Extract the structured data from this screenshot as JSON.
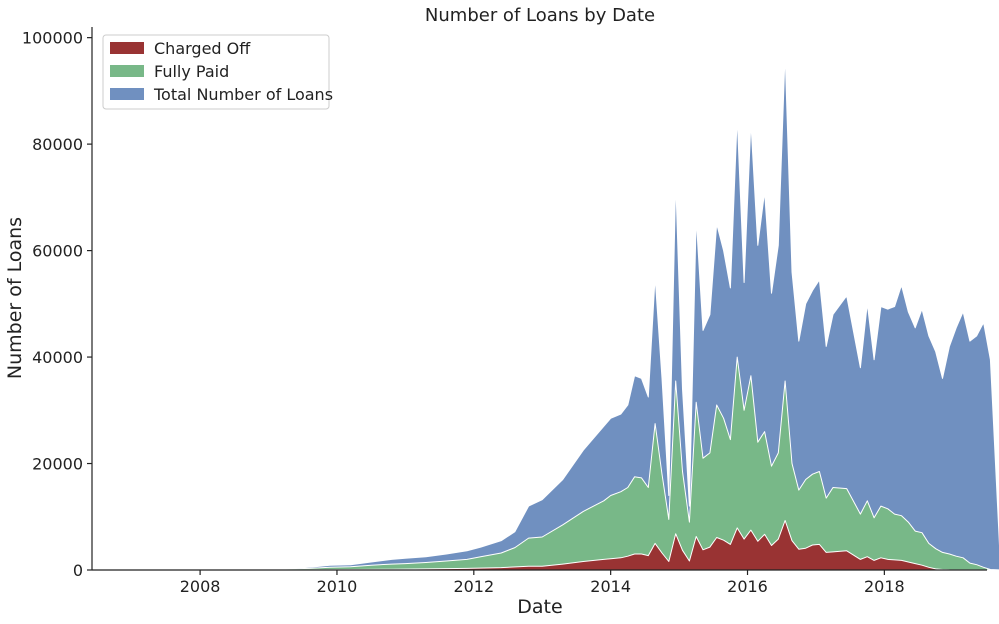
{
  "chart_data": {
    "type": "area",
    "title": "Number of Loans by Date",
    "xlabel": "Date",
    "ylabel": "Number of Loans",
    "xlim": [
      2006.42,
      2019.5
    ],
    "ylim": [
      0,
      102000
    ],
    "xticks": [
      2008,
      2010,
      2012,
      2014,
      2016,
      2018
    ],
    "xtick_labels": [
      "2008",
      "2010",
      "2012",
      "2014",
      "2016",
      "2018"
    ],
    "yticks": [
      0,
      20000,
      40000,
      60000,
      80000,
      100000
    ],
    "ytick_labels": [
      "0",
      "20000",
      "40000",
      "60000",
      "80000",
      "100000"
    ],
    "grid": false,
    "legend_position": "top-left",
    "stacked": false,
    "draw_order": [
      "total",
      "fully_paid",
      "charged_off"
    ],
    "legend_order": [
      "charged_off",
      "fully_paid",
      "total"
    ],
    "series": {
      "total": {
        "name": "Total Number of Loans",
        "color": "#7090c0",
        "points": [
          [
            2006.9,
            0
          ],
          [
            2007.5,
            20
          ],
          [
            2008.0,
            40
          ],
          [
            2008.2,
            300
          ],
          [
            2008.4,
            60
          ],
          [
            2008.8,
            80
          ],
          [
            2009.0,
            150
          ],
          [
            2009.3,
            300
          ],
          [
            2009.6,
            500
          ],
          [
            2009.9,
            900
          ],
          [
            2010.2,
            1000
          ],
          [
            2010.5,
            1500
          ],
          [
            2010.8,
            2000
          ],
          [
            2011.0,
            2200
          ],
          [
            2011.3,
            2500
          ],
          [
            2011.6,
            3000
          ],
          [
            2011.9,
            3600
          ],
          [
            2012.1,
            4300
          ],
          [
            2012.4,
            5500
          ],
          [
            2012.6,
            7200
          ],
          [
            2012.8,
            12000
          ],
          [
            2013.0,
            13200
          ],
          [
            2013.3,
            17000
          ],
          [
            2013.6,
            22500
          ],
          [
            2013.9,
            27000
          ],
          [
            2014.0,
            28500
          ],
          [
            2014.15,
            29300
          ],
          [
            2014.25,
            31000
          ],
          [
            2014.35,
            36500
          ],
          [
            2014.45,
            36000
          ],
          [
            2014.55,
            32500
          ],
          [
            2014.65,
            55000
          ],
          [
            2014.75,
            36000
          ],
          [
            2014.85,
            14000
          ],
          [
            2014.95,
            73000
          ],
          [
            2015.05,
            34000
          ],
          [
            2015.15,
            12000
          ],
          [
            2015.25,
            66000
          ],
          [
            2015.35,
            45000
          ],
          [
            2015.45,
            48000
          ],
          [
            2015.55,
            65000
          ],
          [
            2015.65,
            60000
          ],
          [
            2015.75,
            53000
          ],
          [
            2015.85,
            85000
          ],
          [
            2015.95,
            54000
          ],
          [
            2016.05,
            84000
          ],
          [
            2016.15,
            61000
          ],
          [
            2016.25,
            71000
          ],
          [
            2016.35,
            52000
          ],
          [
            2016.45,
            61000
          ],
          [
            2016.55,
            97000
          ],
          [
            2016.65,
            56000
          ],
          [
            2016.75,
            43000
          ],
          [
            2016.85,
            50000
          ],
          [
            2016.95,
            52500
          ],
          [
            2017.05,
            54500
          ],
          [
            2017.15,
            42000
          ],
          [
            2017.25,
            48000
          ],
          [
            2017.45,
            51500
          ],
          [
            2017.65,
            38000
          ],
          [
            2017.75,
            50000
          ],
          [
            2017.85,
            39500
          ],
          [
            2017.95,
            49500
          ],
          [
            2018.05,
            49000
          ],
          [
            2018.15,
            49500
          ],
          [
            2018.25,
            53500
          ],
          [
            2018.35,
            48500
          ],
          [
            2018.45,
            45500
          ],
          [
            2018.55,
            49000
          ],
          [
            2018.65,
            44000
          ],
          [
            2018.75,
            41000
          ],
          [
            2018.85,
            36000
          ],
          [
            2018.95,
            42000
          ],
          [
            2019.05,
            45500
          ],
          [
            2019.15,
            48500
          ],
          [
            2019.25,
            43000
          ],
          [
            2019.35,
            44000
          ],
          [
            2019.45,
            46500
          ],
          [
            2019.55,
            39500
          ],
          [
            2019.7,
            0
          ]
        ]
      },
      "fully_paid": {
        "name": "Fully Paid",
        "color": "#78b888",
        "points": [
          [
            2006.9,
            0
          ],
          [
            2007.5,
            20
          ],
          [
            2008.0,
            30
          ],
          [
            2008.2,
            200
          ],
          [
            2008.4,
            40
          ],
          [
            2008.8,
            50
          ],
          [
            2009.0,
            100
          ],
          [
            2009.3,
            200
          ],
          [
            2009.6,
            300
          ],
          [
            2009.9,
            500
          ],
          [
            2010.2,
            600
          ],
          [
            2010.5,
            900
          ],
          [
            2010.8,
            1100
          ],
          [
            2011.0,
            1200
          ],
          [
            2011.3,
            1400
          ],
          [
            2011.6,
            1700
          ],
          [
            2011.9,
            2000
          ],
          [
            2012.1,
            2500
          ],
          [
            2012.4,
            3200
          ],
          [
            2012.6,
            4200
          ],
          [
            2012.8,
            6000
          ],
          [
            2013.0,
            6200
          ],
          [
            2013.3,
            8500
          ],
          [
            2013.6,
            11000
          ],
          [
            2013.9,
            13000
          ],
          [
            2014.0,
            14000
          ],
          [
            2014.15,
            14700
          ],
          [
            2014.25,
            15500
          ],
          [
            2014.35,
            17500
          ],
          [
            2014.45,
            17300
          ],
          [
            2014.55,
            15500
          ],
          [
            2014.65,
            27500
          ],
          [
            2014.75,
            18000
          ],
          [
            2014.85,
            9500
          ],
          [
            2014.95,
            35500
          ],
          [
            2015.05,
            18500
          ],
          [
            2015.15,
            9000
          ],
          [
            2015.25,
            31500
          ],
          [
            2015.35,
            21000
          ],
          [
            2015.45,
            22000
          ],
          [
            2015.55,
            31000
          ],
          [
            2015.65,
            28500
          ],
          [
            2015.75,
            24500
          ],
          [
            2015.85,
            40000
          ],
          [
            2015.95,
            30000
          ],
          [
            2016.05,
            36500
          ],
          [
            2016.15,
            24000
          ],
          [
            2016.25,
            26000
          ],
          [
            2016.35,
            19500
          ],
          [
            2016.45,
            22000
          ],
          [
            2016.55,
            35500
          ],
          [
            2016.65,
            20000
          ],
          [
            2016.75,
            15000
          ],
          [
            2016.85,
            17000
          ],
          [
            2016.95,
            18000
          ],
          [
            2017.05,
            18500
          ],
          [
            2017.15,
            13500
          ],
          [
            2017.25,
            15500
          ],
          [
            2017.45,
            15300
          ],
          [
            2017.65,
            10500
          ],
          [
            2017.75,
            13000
          ],
          [
            2017.85,
            9800
          ],
          [
            2017.95,
            12000
          ],
          [
            2018.05,
            11500
          ],
          [
            2018.15,
            10500
          ],
          [
            2018.25,
            10200
          ],
          [
            2018.35,
            9000
          ],
          [
            2018.45,
            7300
          ],
          [
            2018.55,
            7000
          ],
          [
            2018.65,
            5000
          ],
          [
            2018.75,
            4000
          ],
          [
            2018.85,
            3300
          ],
          [
            2018.95,
            3000
          ],
          [
            2019.05,
            2600
          ],
          [
            2019.15,
            2300
          ],
          [
            2019.25,
            1300
          ],
          [
            2019.35,
            1000
          ],
          [
            2019.45,
            500
          ],
          [
            2019.55,
            100
          ],
          [
            2019.7,
            0
          ]
        ]
      },
      "charged_off": {
        "name": "Charged Off",
        "color": "#993333",
        "points": [
          [
            2006.9,
            0
          ],
          [
            2008.0,
            10
          ],
          [
            2008.2,
            50
          ],
          [
            2008.4,
            10
          ],
          [
            2009.0,
            30
          ],
          [
            2009.6,
            60
          ],
          [
            2010.2,
            100
          ],
          [
            2010.8,
            150
          ],
          [
            2011.3,
            200
          ],
          [
            2011.9,
            300
          ],
          [
            2012.4,
            450
          ],
          [
            2012.8,
            700
          ],
          [
            2013.0,
            700
          ],
          [
            2013.3,
            1100
          ],
          [
            2013.6,
            1600
          ],
          [
            2013.9,
            2000
          ],
          [
            2014.0,
            2100
          ],
          [
            2014.15,
            2300
          ],
          [
            2014.25,
            2600
          ],
          [
            2014.35,
            3000
          ],
          [
            2014.45,
            3000
          ],
          [
            2014.55,
            2700
          ],
          [
            2014.65,
            5000
          ],
          [
            2014.75,
            3200
          ],
          [
            2014.85,
            1600
          ],
          [
            2014.95,
            6800
          ],
          [
            2015.05,
            3700
          ],
          [
            2015.15,
            1700
          ],
          [
            2015.25,
            6300
          ],
          [
            2015.35,
            3800
          ],
          [
            2015.45,
            4300
          ],
          [
            2015.55,
            6100
          ],
          [
            2015.65,
            5600
          ],
          [
            2015.75,
            4800
          ],
          [
            2015.85,
            7900
          ],
          [
            2015.95,
            5800
          ],
          [
            2016.05,
            7500
          ],
          [
            2016.15,
            5400
          ],
          [
            2016.25,
            6700
          ],
          [
            2016.35,
            4600
          ],
          [
            2016.45,
            5800
          ],
          [
            2016.55,
            9300
          ],
          [
            2016.65,
            5500
          ],
          [
            2016.75,
            3900
          ],
          [
            2016.85,
            4100
          ],
          [
            2016.95,
            4700
          ],
          [
            2017.05,
            4800
          ],
          [
            2017.15,
            3300
          ],
          [
            2017.25,
            3400
          ],
          [
            2017.45,
            3600
          ],
          [
            2017.65,
            2000
          ],
          [
            2017.75,
            2500
          ],
          [
            2017.85,
            1800
          ],
          [
            2017.95,
            2300
          ],
          [
            2018.05,
            2000
          ],
          [
            2018.15,
            1900
          ],
          [
            2018.25,
            1800
          ],
          [
            2018.35,
            1500
          ],
          [
            2018.45,
            1200
          ],
          [
            2018.55,
            900
          ],
          [
            2018.65,
            500
          ],
          [
            2018.75,
            200
          ],
          [
            2018.85,
            100
          ],
          [
            2018.95,
            50
          ],
          [
            2019.7,
            0
          ]
        ]
      }
    }
  }
}
